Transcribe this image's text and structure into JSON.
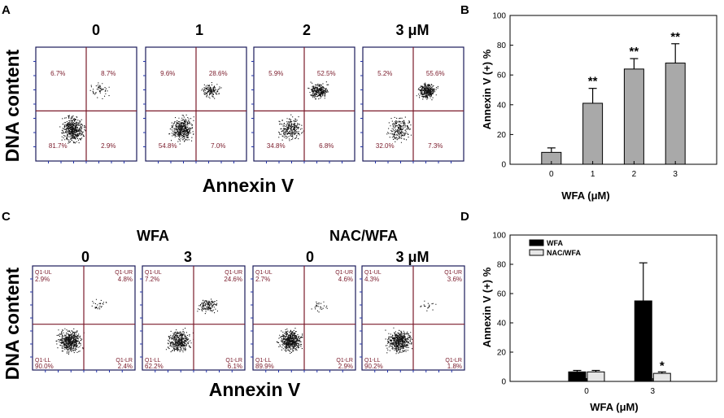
{
  "panels": {
    "A": "A",
    "B": "B",
    "C": "C",
    "D": "D"
  },
  "a": {
    "conc_labels": [
      "0",
      "1",
      "2",
      "3 μM"
    ],
    "x_label": "Annexin V",
    "y_label": "DNA content",
    "plots": [
      {
        "ul": "6.7%",
        "ur": "8.7%",
        "ll": "81.7%",
        "lr": "2.9%"
      },
      {
        "ul": "9.6%",
        "ur": "28.6%",
        "ll": "54.8%",
        "lr": "7.0%"
      },
      {
        "ul": "5.9%",
        "ur": "52.5%",
        "ll": "34.8%",
        "lr": "6.8%"
      },
      {
        "ul": "5.2%",
        "ur": "55.6%",
        "ll": "32.0%",
        "lr": "7.3%"
      }
    ]
  },
  "c": {
    "group_labels": [
      "WFA",
      "NAC/WFA"
    ],
    "conc_labels": [
      "0",
      "3",
      "0",
      "3 μM"
    ],
    "x_label": "Annexin V",
    "y_label": "DNA content",
    "quadrant_tags": {
      "ul": "Q1-UL",
      "ur": "Q1-UR",
      "ll": "Q1-LL",
      "lr": "Q1-LR"
    },
    "plots": [
      {
        "ul": "2.9%",
        "ur": "4.8%",
        "ll": "90.0%",
        "lr": "2.4%"
      },
      {
        "ul": "7.2%",
        "ur": "24.6%",
        "ll": "62.2%",
        "lr": "6.1%"
      },
      {
        "ul": "2.7%",
        "ur": "4.6%",
        "ll": "89.9%",
        "lr": "2.9%"
      },
      {
        "ul": "4.3%",
        "ur": "3.6%",
        "ll": "90.2%",
        "lr": "1.8%"
      }
    ]
  },
  "chart_data": [
    {
      "panel": "B",
      "type": "bar",
      "categories": [
        "0",
        "1",
        "2",
        "3"
      ],
      "values": [
        8,
        41,
        64,
        68
      ],
      "errors": [
        3,
        10,
        7,
        13
      ],
      "significance": [
        "",
        "**",
        "**",
        "**"
      ],
      "xlabel": "WFA (μM)",
      "ylabel": "Annexin V (+) %",
      "ylim": [
        0,
        100
      ],
      "yticks": [
        0,
        20,
        40,
        60,
        80,
        100
      ],
      "color": "#a9a9a9"
    },
    {
      "panel": "D",
      "type": "bar",
      "categories": [
        "0",
        "3"
      ],
      "series": [
        {
          "name": "WFA",
          "values": [
            6.5,
            55
          ],
          "errors": [
            1,
            26
          ],
          "significance": [
            "",
            ""
          ],
          "color": "#000000"
        },
        {
          "name": "NAC/WFA",
          "values": [
            6.5,
            5.5
          ],
          "errors": [
            1,
            1
          ],
          "significance": [
            "",
            "*"
          ],
          "color": "#e6e6e6"
        }
      ],
      "xlabel": "WFA (μM)",
      "ylabel": "Annexin V (+) %",
      "ylim": [
        0,
        100
      ],
      "yticks": [
        0,
        20,
        40,
        60,
        80,
        100
      ],
      "legend": "top-left"
    }
  ]
}
